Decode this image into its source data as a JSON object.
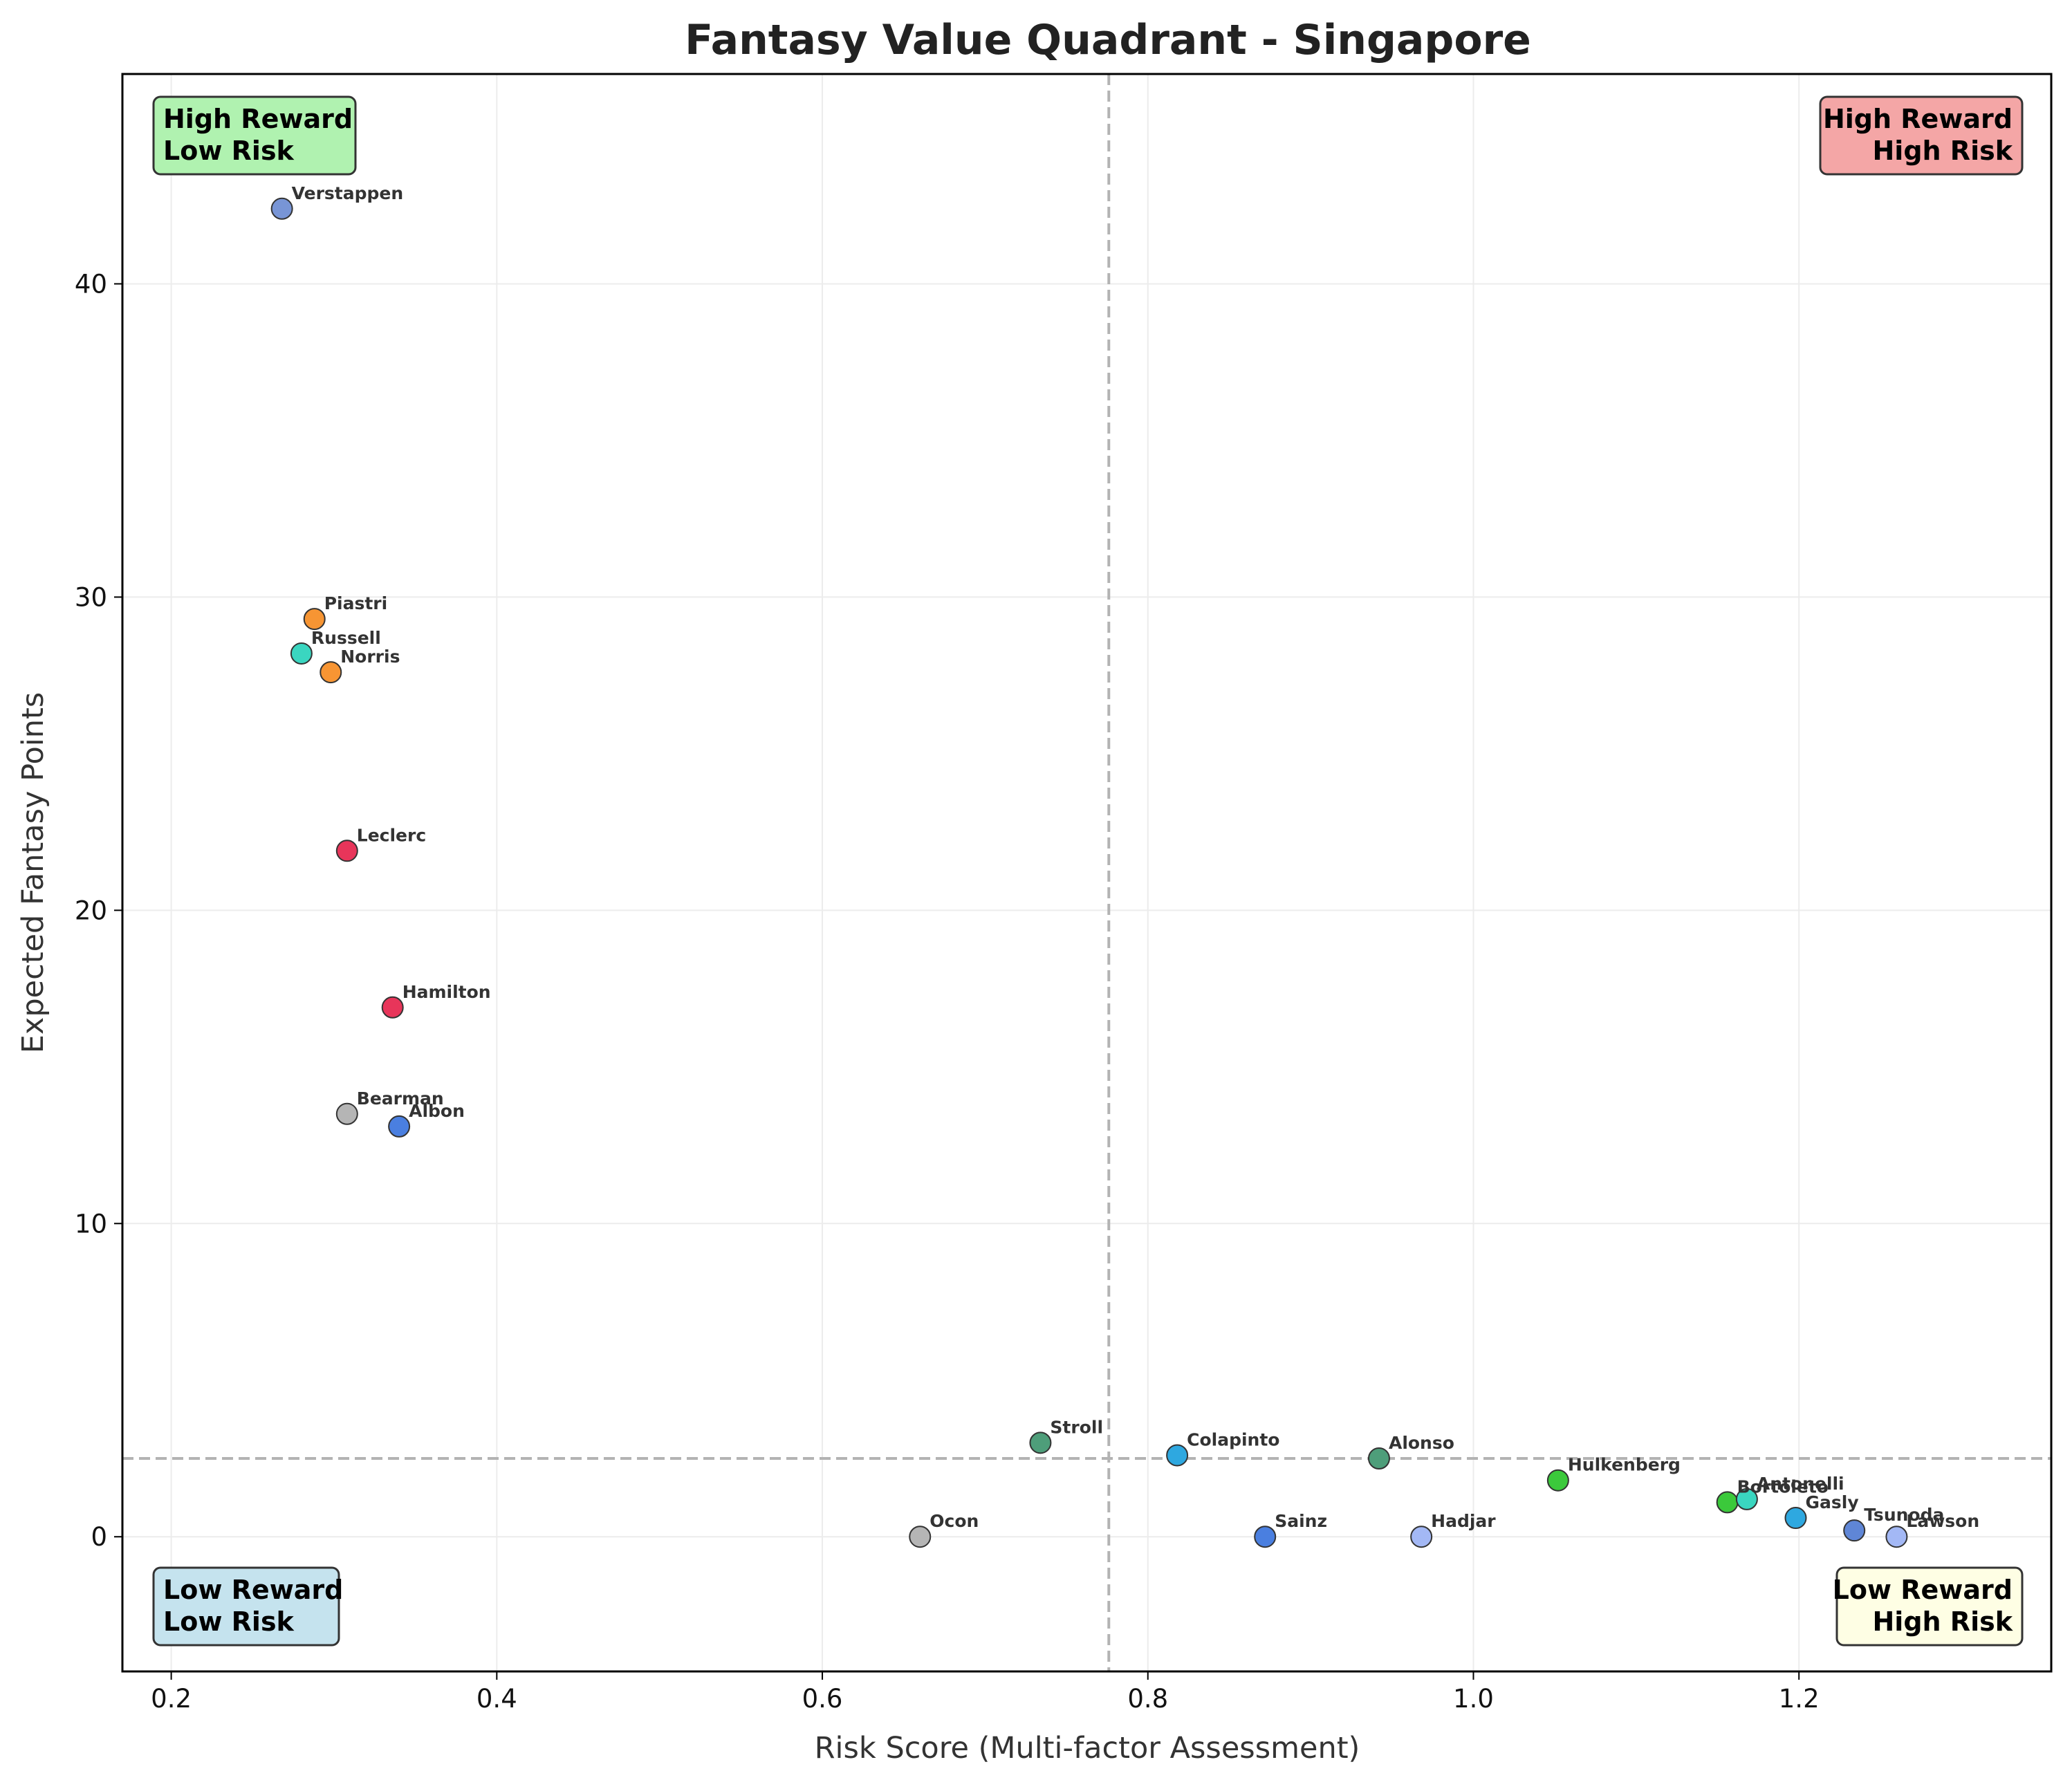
{
  "chart_data": {
    "type": "scatter",
    "title": "Fantasy Value Quadrant - Singapore",
    "xlabel": "Risk Score (Multi-factor Assessment)",
    "ylabel": "Expected Fantasy Points",
    "xlim": [
      0.17,
      1.355
    ],
    "ylim": [
      -4.3,
      46.7
    ],
    "xticks": [
      0.2,
      0.4,
      0.6,
      0.8,
      1.0,
      1.2
    ],
    "xtick_labels": [
      "0.2",
      "0.4",
      "0.6",
      "0.8",
      "1.0",
      "1.2"
    ],
    "yticks": [
      0,
      10,
      20,
      30,
      40
    ],
    "ytick_labels": [
      "0",
      "10",
      "20",
      "30",
      "40"
    ],
    "grid": true,
    "reference_lines": {
      "x": 0.776,
      "y": 2.5
    },
    "points": [
      {
        "label": "Verstappen",
        "x": 0.268,
        "y": 42.4,
        "color": "#7895d6"
      },
      {
        "label": "Piastri",
        "x": 0.288,
        "y": 29.3,
        "color": "#f79533"
      },
      {
        "label": "Russell",
        "x": 0.28,
        "y": 28.2,
        "color": "#3ad6c0"
      },
      {
        "label": "Norris",
        "x": 0.298,
        "y": 27.6,
        "color": "#f79533"
      },
      {
        "label": "Leclerc",
        "x": 0.308,
        "y": 21.9,
        "color": "#e8355a"
      },
      {
        "label": "Hamilton",
        "x": 0.336,
        "y": 16.9,
        "color": "#e8355a"
      },
      {
        "label": "Bearman",
        "x": 0.308,
        "y": 13.5,
        "color": "#b5b5b5"
      },
      {
        "label": "Albon",
        "x": 0.34,
        "y": 13.1,
        "color": "#4a7fe0"
      },
      {
        "label": "Ocon",
        "x": 0.66,
        "y": 0.0,
        "color": "#b5b5b5"
      },
      {
        "label": "Stroll",
        "x": 0.734,
        "y": 3.0,
        "color": "#4e9e7a"
      },
      {
        "label": "Colapinto",
        "x": 0.818,
        "y": 2.6,
        "color": "#2ea8e0"
      },
      {
        "label": "Sainz",
        "x": 0.872,
        "y": 0.0,
        "color": "#4a7fe0"
      },
      {
        "label": "Alonso",
        "x": 0.942,
        "y": 2.5,
        "color": "#4e9e7a"
      },
      {
        "label": "Hadjar",
        "x": 0.968,
        "y": 0.0,
        "color": "#a3b8f5"
      },
      {
        "label": "Hulkenberg",
        "x": 1.052,
        "y": 1.8,
        "color": "#3bc93b"
      },
      {
        "label": "Bortoleto",
        "x": 1.156,
        "y": 1.1,
        "color": "#3bc93b"
      },
      {
        "label": "Antonelli",
        "x": 1.168,
        "y": 1.2,
        "color": "#3ad6c0"
      },
      {
        "label": "Gasly",
        "x": 1.198,
        "y": 0.6,
        "color": "#2ea8e0"
      },
      {
        "label": "Tsunoda",
        "x": 1.234,
        "y": 0.2,
        "color": "#5f86d6"
      },
      {
        "label": "Lawson",
        "x": 1.26,
        "y": 0.0,
        "color": "#a3b8f5"
      }
    ],
    "quadrants": [
      {
        "position": "top-left",
        "line1": "High Reward",
        "line2": "Low Risk",
        "color": "#b0f2b0"
      },
      {
        "position": "top-right",
        "line1": "High Reward",
        "line2": "High Risk",
        "color": "#f4a6a6"
      },
      {
        "position": "bottom-left",
        "line1": "Low Reward",
        "line2": "Low Risk",
        "color": "#c5e3ee"
      },
      {
        "position": "bottom-right",
        "line1": "Low Reward",
        "line2": "High Risk",
        "color": "#fefee4"
      }
    ]
  }
}
